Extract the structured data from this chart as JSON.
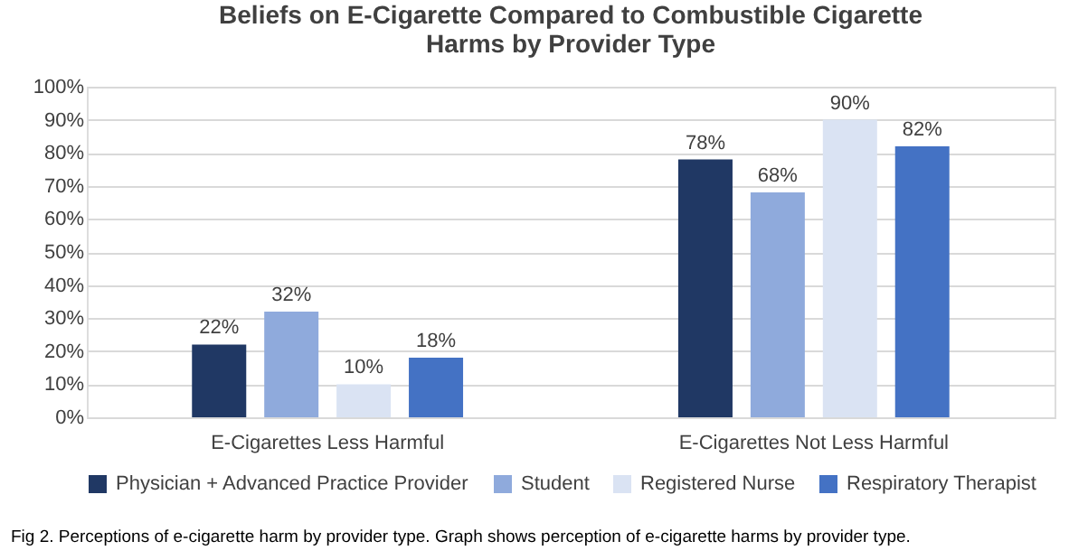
{
  "chart_data": {
    "type": "bar",
    "title": "Beliefs on E-Cigarette Compared to Combustible Cigarette\nHarms by Provider Type",
    "categories": [
      "E-Cigarettes Less Harmful",
      "E-Cigarettes Not Less Harmful"
    ],
    "series": [
      {
        "name": "Physician + Advanced Practice Provider",
        "color": "#203864",
        "values": [
          22,
          78
        ],
        "value_labels": [
          "22%",
          "78%"
        ]
      },
      {
        "name": "Student",
        "color": "#8faadc",
        "values": [
          32,
          68
        ],
        "value_labels": [
          "32%",
          "68%"
        ]
      },
      {
        "name": "Registered Nurse",
        "color": "#dae3f3",
        "values": [
          10,
          90
        ],
        "value_labels": [
          "10%",
          "90%"
        ]
      },
      {
        "name": "Respiratory Therapist",
        "color": "#4472c4",
        "values": [
          18,
          82
        ],
        "value_labels": [
          "18%",
          "82%"
        ]
      }
    ],
    "ylim": [
      0,
      100
    ],
    "yticks": [
      {
        "value": 0,
        "label": "0%"
      },
      {
        "value": 10,
        "label": "10%"
      },
      {
        "value": 20,
        "label": "20%"
      },
      {
        "value": 30,
        "label": "30%"
      },
      {
        "value": 40,
        "label": "40%"
      },
      {
        "value": 50,
        "label": "50%"
      },
      {
        "value": 60,
        "label": "60%"
      },
      {
        "value": 70,
        "label": "70%"
      },
      {
        "value": 80,
        "label": "80%"
      },
      {
        "value": 90,
        "label": "90%"
      },
      {
        "value": 100,
        "label": "100%"
      }
    ],
    "grid": "y",
    "legend": "bottom",
    "annotations": [
      "Fig 2.  Perceptions of e-cigarette harm by provider type. Graph shows perception of e-cigarette harms by provider type."
    ]
  }
}
